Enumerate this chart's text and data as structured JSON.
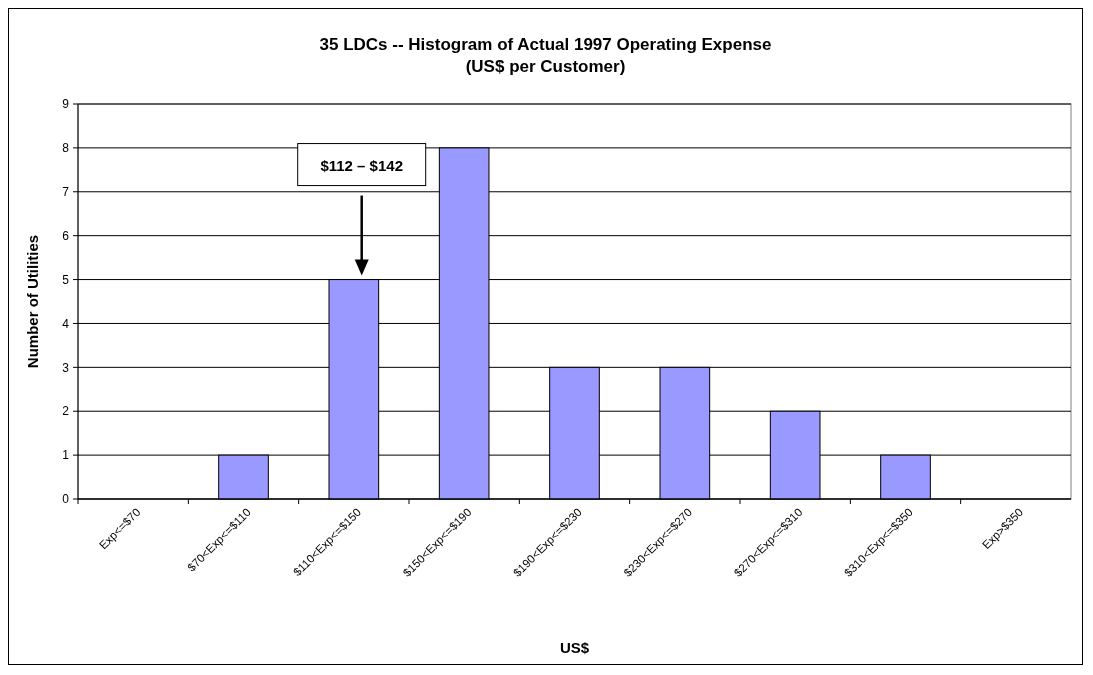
{
  "chart_data": {
    "type": "bar",
    "title": "35 LDCs -- Histogram of Actual 1997 Operating Expense",
    "subtitle": "(US$ per Customer)",
    "xlabel": "US$",
    "ylabel": "Number of Utilities",
    "categories": [
      "Exp<=$70",
      "$70<Exp<=$110",
      "$110<Exp<=$150",
      "$150<Exp<=$190",
      "$190<Exp<=$230",
      "$230<Exp<=$270",
      "$270<Exp<=$310",
      "$310<Exp<=$350",
      "Exp>$350"
    ],
    "values": [
      0,
      1,
      5,
      8,
      3,
      3,
      2,
      1,
      0
    ],
    "color": "#9999ff",
    "ylim": [
      0,
      9
    ],
    "yticks": [
      0,
      1,
      2,
      3,
      4,
      5,
      6,
      7,
      8,
      9
    ],
    "grid": "y",
    "annotations": [
      "$112 – $142"
    ]
  }
}
